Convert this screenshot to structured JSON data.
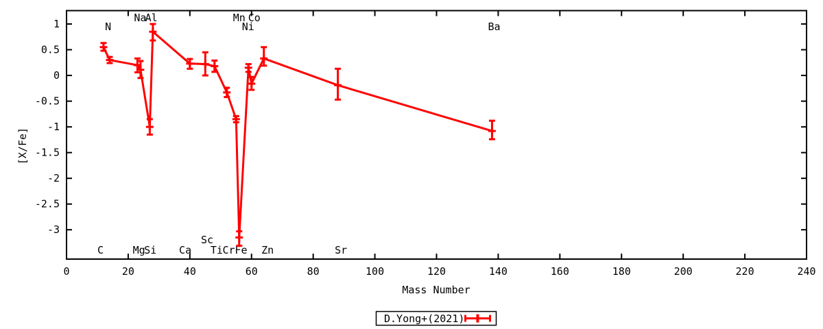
{
  "chart_data": {
    "type": "line",
    "title": "",
    "xlabel": "Mass Number",
    "ylabel": "[X/Fe]",
    "xlim": [
      0,
      240
    ],
    "ylim": [
      -3.57,
      1.26
    ],
    "grid": false,
    "colors": {
      "series": "#ff0000",
      "axis": "#000000",
      "background": "#ffffff"
    },
    "x_ticks": {
      "values": [
        0,
        20,
        40,
        60,
        80,
        100,
        120,
        140,
        160,
        180,
        200,
        220,
        240
      ],
      "labels": [
        "0",
        "20",
        "40",
        "60",
        "80",
        "100",
        "120",
        "140",
        "160",
        "180",
        "200",
        "220",
        "240"
      ]
    },
    "y_ticks": {
      "values": [
        1,
        0.5,
        0,
        -0.5,
        -1,
        -1.5,
        -2,
        -2.5,
        -3
      ],
      "labels": [
        "1",
        "0.5",
        "0",
        "-0.5",
        "-1",
        "-1.5",
        "-2",
        "-2.5",
        "-3"
      ]
    },
    "legend": {
      "label": "D.Yong+(2021)",
      "position": "below-center",
      "marker": "red-errorbar-line-sample"
    },
    "series": [
      {
        "name": "D.Yong+(2021)",
        "color": "#ff0000",
        "style": "linespoints-with-errorbars",
        "points": [
          {
            "element": "C",
            "mass": 12,
            "value": 0.55,
            "err_lo": 0.48,
            "err_hi": 0.63
          },
          {
            "element": "N",
            "mass": 14,
            "value": 0.3,
            "err_lo": 0.24,
            "err_hi": 0.36
          },
          {
            "element": "Na",
            "mass": 23,
            "value": 0.2,
            "err_lo": 0.06,
            "err_hi": 0.33
          },
          {
            "element": "Mg",
            "mass": 24,
            "value": 0.11,
            "err_lo": -0.05,
            "err_hi": 0.28
          },
          {
            "element": "Al",
            "mass": 27,
            "value": -1.0,
            "err_lo": -1.15,
            "err_hi": -0.85
          },
          {
            "element": "Si",
            "mass": 28,
            "value": 0.85,
            "err_lo": 0.68,
            "err_hi": 1.0
          },
          {
            "element": "Ca",
            "mass": 40,
            "value": 0.23,
            "err_lo": 0.13,
            "err_hi": 0.32
          },
          {
            "element": "Sc",
            "mass": 45,
            "value": 0.22,
            "err_lo": 0.0,
            "err_hi": 0.45
          },
          {
            "element": "Ti",
            "mass": 48,
            "value": 0.18,
            "err_lo": 0.07,
            "err_hi": 0.29
          },
          {
            "element": "Cr",
            "mass": 52,
            "value": -0.33,
            "err_lo": -0.42,
            "err_hi": -0.24
          },
          {
            "element": "Mn",
            "mass": 55,
            "value": -0.85,
            "err_lo": -0.91,
            "err_hi": -0.79
          },
          {
            "element": "Fe",
            "mass": 56,
            "value": -3.15,
            "err_lo": -3.31,
            "err_hi": -3.03
          },
          {
            "element": "Co",
            "mass": 59,
            "value": 0.15,
            "err_lo": 0.07,
            "err_hi": 0.22
          },
          {
            "element": "Ni",
            "mass": 60,
            "value": -0.16,
            "err_lo": -0.28,
            "err_hi": -0.03
          },
          {
            "element": "Zn",
            "mass": 64,
            "value": 0.33,
            "err_lo": 0.19,
            "err_hi": 0.55
          },
          {
            "element": "Sr",
            "mass": 88,
            "value": -0.19,
            "err_lo": -0.47,
            "err_hi": 0.13
          },
          {
            "element": "Ba",
            "mass": 138,
            "value": -1.08,
            "err_lo": -1.24,
            "err_hi": -0.88
          }
        ]
      }
    ],
    "annotations": [
      {
        "text": "Na",
        "x": 23.9,
        "y": 1.12
      },
      {
        "text": "Al",
        "x": 27.5,
        "y": 1.12
      },
      {
        "text": "Mn",
        "x": 56.0,
        "y": 1.12
      },
      {
        "text": "Co",
        "x": 60.9,
        "y": 1.12
      },
      {
        "text": "N",
        "x": 13.5,
        "y": 0.95
      },
      {
        "text": "Ni",
        "x": 58.9,
        "y": 0.95
      },
      {
        "text": "Ba",
        "x": 138.7,
        "y": 0.95
      },
      {
        "text": "Sc",
        "x": 45.6,
        "y": -3.2
      },
      {
        "text": "C",
        "x": 11.0,
        "y": -3.4
      },
      {
        "text": "Mg",
        "x": 23.5,
        "y": -3.4
      },
      {
        "text": "Si",
        "x": 27.2,
        "y": -3.4
      },
      {
        "text": "Ca",
        "x": 38.5,
        "y": -3.4
      },
      {
        "text": "Ti",
        "x": 48.7,
        "y": -3.4
      },
      {
        "text": "Cr",
        "x": 52.6,
        "y": -3.4
      },
      {
        "text": "Fe",
        "x": 56.6,
        "y": -3.4
      },
      {
        "text": "Zn",
        "x": 65.2,
        "y": -3.4
      },
      {
        "text": "Sr",
        "x": 89.0,
        "y": -3.4
      }
    ]
  }
}
